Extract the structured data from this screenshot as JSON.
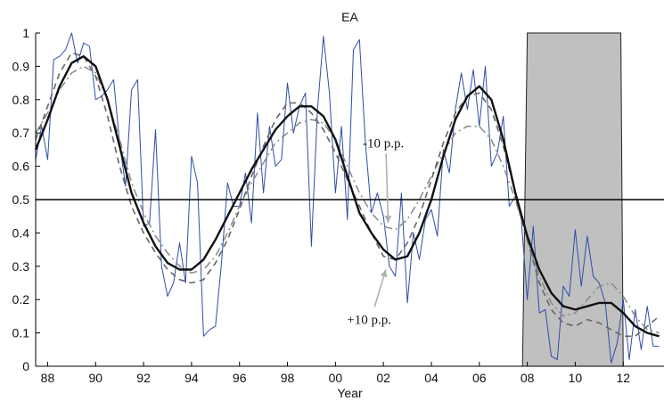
{
  "chart_data": {
    "type": "line",
    "title": "EA",
    "xlabel": "Year",
    "ylabel": "",
    "xlim": [
      1987.5,
      2013.7
    ],
    "ylim": [
      0,
      1
    ],
    "x_ticks": [
      1988,
      1990,
      1992,
      1994,
      1996,
      1998,
      2000,
      2002,
      2004,
      2006,
      2008,
      2010,
      2012
    ],
    "x_tick_labels": [
      "88",
      "90",
      "92",
      "94",
      "96",
      "98",
      "00",
      "02",
      "04",
      "06",
      "08",
      "10",
      "12"
    ],
    "y_ticks": [
      0,
      0.1,
      0.2,
      0.3,
      0.4,
      0.5,
      0.6,
      0.7,
      0.8,
      0.9,
      1
    ],
    "y_tick_labels": [
      "0",
      "0.1",
      "0.2",
      "0.3",
      "0.4",
      "0.5",
      "0.6",
      "0.7",
      "0.8",
      "0.9",
      "1"
    ],
    "grid": false,
    "threshold": 0.5,
    "shaded_region": {
      "x_start": 2007.8,
      "x_end": 2012.0,
      "top_x_start": 2008.0,
      "top_x_end": 2011.9,
      "color": "#c0c0c0"
    },
    "annotations": [
      {
        "text": "-10 p.p.",
        "x": 2002.0,
        "y": 0.67
      },
      {
        "text": "+10 p.p.",
        "x": 2002.0,
        "y": 0.14
      }
    ],
    "colors": {
      "noisy": "#2f4ea8",
      "smooth": "#111111",
      "dashed": "#666666",
      "dashdot": "#888888"
    },
    "series": [
      {
        "style": "noisy",
        "x": [
          1987.5,
          1987.75,
          1988,
          1988.25,
          1988.5,
          1988.75,
          1989,
          1989.25,
          1989.5,
          1989.75,
          1990,
          1990.25,
          1990.5,
          1990.75,
          1991,
          1991.25,
          1991.5,
          1991.75,
          1992,
          1992.25,
          1992.5,
          1992.75,
          1993,
          1993.25,
          1993.5,
          1993.75,
          1994,
          1994.25,
          1994.5,
          1994.75,
          1995,
          1995.25,
          1995.5,
          1995.75,
          1996,
          1996.25,
          1996.5,
          1996.75,
          1997,
          1997.25,
          1997.5,
          1997.75,
          1998,
          1998.25,
          1998.5,
          1998.75,
          1999,
          1999.25,
          1999.5,
          1999.75,
          2000,
          2000.25,
          2000.5,
          2000.75,
          2001,
          2001.25,
          2001.5,
          2001.75,
          2002,
          2002.25,
          2002.5,
          2002.75,
          2003,
          2003.25,
          2003.5,
          2003.75,
          2004,
          2004.25,
          2004.5,
          2004.75,
          2005,
          2005.25,
          2005.5,
          2005.75,
          2006,
          2006.25,
          2006.5,
          2006.75,
          2007,
          2007.25,
          2007.5,
          2007.75,
          2008,
          2008.25,
          2008.5,
          2008.75,
          2009,
          2009.25,
          2009.5,
          2009.75,
          2010,
          2010.25,
          2010.5,
          2010.75,
          2011,
          2011.25,
          2011.5,
          2011.75,
          2012,
          2012.25,
          2012.5,
          2012.75,
          2013,
          2013.25,
          2013.5
        ],
        "y": [
          0.62,
          0.72,
          0.62,
          0.92,
          0.93,
          0.95,
          1.0,
          0.91,
          0.97,
          0.96,
          0.8,
          0.81,
          0.83,
          0.86,
          0.67,
          0.54,
          0.83,
          0.86,
          0.42,
          0.43,
          0.71,
          0.3,
          0.21,
          0.25,
          0.37,
          0.25,
          0.63,
          0.55,
          0.09,
          0.11,
          0.12,
          0.31,
          0.55,
          0.48,
          0.48,
          0.58,
          0.43,
          0.76,
          0.52,
          0.72,
          0.6,
          0.62,
          0.85,
          0.7,
          0.78,
          0.82,
          0.36,
          0.77,
          0.99,
          0.82,
          0.52,
          0.72,
          0.44,
          0.95,
          0.98,
          0.67,
          0.46,
          0.52,
          0.45,
          0.3,
          0.27,
          0.52,
          0.19,
          0.4,
          0.32,
          0.44,
          0.47,
          0.39,
          0.65,
          0.58,
          0.77,
          0.88,
          0.77,
          0.89,
          0.72,
          0.9,
          0.6,
          0.64,
          0.75,
          0.48,
          0.51,
          0.44,
          0.2,
          0.42,
          0.16,
          0.17,
          0.03,
          0.02,
          0.24,
          0.21,
          0.41,
          0.24,
          0.39,
          0.27,
          0.25,
          0.19,
          0.01,
          0.07,
          0.2,
          0.02,
          0.17,
          0.05,
          0.18,
          0.06,
          0.06
        ]
      },
      {
        "style": "smooth",
        "x": [
          1987.5,
          1988,
          1988.5,
          1989,
          1989.5,
          1990,
          1990.5,
          1991,
          1991.5,
          1992,
          1992.5,
          1993,
          1993.5,
          1994,
          1994.5,
          1995,
          1995.5,
          1996,
          1996.5,
          1997,
          1997.5,
          1998,
          1998.5,
          1999,
          1999.5,
          2000,
          2000.5,
          2001,
          2001.5,
          2002,
          2002.5,
          2003,
          2003.5,
          2004,
          2004.5,
          2005,
          2005.5,
          2006,
          2006.5,
          2007,
          2007.5,
          2008,
          2008.5,
          2009,
          2009.5,
          2010,
          2010.5,
          2011,
          2011.5,
          2012,
          2012.5,
          2013,
          2013.5
        ],
        "y": [
          0.65,
          0.74,
          0.84,
          0.91,
          0.93,
          0.9,
          0.8,
          0.66,
          0.52,
          0.43,
          0.36,
          0.31,
          0.29,
          0.29,
          0.32,
          0.38,
          0.45,
          0.52,
          0.59,
          0.65,
          0.71,
          0.75,
          0.78,
          0.78,
          0.75,
          0.68,
          0.57,
          0.46,
          0.4,
          0.35,
          0.32,
          0.33,
          0.4,
          0.5,
          0.63,
          0.74,
          0.81,
          0.84,
          0.8,
          0.68,
          0.52,
          0.39,
          0.29,
          0.22,
          0.18,
          0.17,
          0.18,
          0.19,
          0.19,
          0.16,
          0.12,
          0.1,
          0.09
        ]
      },
      {
        "style": "dashed",
        "x": [
          1987.5,
          1988,
          1988.5,
          1989,
          1989.5,
          1990,
          1990.5,
          1991,
          1991.5,
          1992,
          1992.5,
          1993,
          1993.5,
          1994,
          1994.5,
          1995,
          1995.5,
          1996,
          1996.5,
          1997,
          1997.5,
          1998,
          1998.5,
          1999,
          1999.5,
          2000,
          2000.5,
          2001,
          2001.5,
          2002,
          2002.5,
          2003,
          2003.5,
          2004,
          2004.5,
          2005,
          2005.5,
          2006,
          2006.5,
          2007,
          2007.5,
          2008,
          2008.5,
          2009,
          2009.5,
          2010,
          2010.5,
          2011,
          2011.5,
          2012,
          2012.5,
          2013,
          2013.5
        ],
        "y": [
          0.68,
          0.78,
          0.88,
          0.94,
          0.93,
          0.87,
          0.75,
          0.6,
          0.48,
          0.4,
          0.34,
          0.29,
          0.26,
          0.25,
          0.26,
          0.31,
          0.38,
          0.47,
          0.57,
          0.66,
          0.74,
          0.79,
          0.79,
          0.76,
          0.71,
          0.64,
          0.56,
          0.48,
          0.4,
          0.33,
          0.32,
          0.37,
          0.45,
          0.56,
          0.67,
          0.76,
          0.81,
          0.82,
          0.77,
          0.66,
          0.52,
          0.38,
          0.25,
          0.17,
          0.13,
          0.12,
          0.14,
          0.13,
          0.11,
          0.09,
          0.09,
          0.12,
          0.15
        ]
      },
      {
        "style": "dashdot",
        "x": [
          1987.5,
          1988,
          1988.5,
          1989,
          1989.5,
          1990,
          1990.5,
          1991,
          1991.5,
          1992,
          1992.5,
          1993,
          1993.5,
          1994,
          1994.5,
          1995,
          1995.5,
          1996,
          1996.5,
          1997,
          1997.5,
          1998,
          1998.5,
          1999,
          1999.5,
          2000,
          2000.5,
          2001,
          2001.5,
          2002,
          2002.5,
          2003,
          2003.5,
          2004,
          2004.5,
          2005,
          2005.5,
          2006,
          2006.5,
          2007,
          2007.5,
          2008,
          2008.5,
          2009,
          2009.5,
          2010,
          2010.5,
          2011,
          2011.5,
          2012,
          2012.5,
          2013,
          2013.5
        ],
        "y": [
          0.7,
          0.76,
          0.83,
          0.88,
          0.9,
          0.88,
          0.8,
          0.68,
          0.55,
          0.46,
          0.39,
          0.34,
          0.3,
          0.28,
          0.29,
          0.33,
          0.4,
          0.48,
          0.55,
          0.61,
          0.67,
          0.7,
          0.73,
          0.74,
          0.73,
          0.68,
          0.6,
          0.52,
          0.46,
          0.42,
          0.41,
          0.44,
          0.5,
          0.57,
          0.64,
          0.7,
          0.72,
          0.72,
          0.68,
          0.6,
          0.5,
          0.38,
          0.27,
          0.19,
          0.15,
          0.16,
          0.2,
          0.24,
          0.25,
          0.21,
          0.15,
          0.11,
          0.1
        ]
      }
    ]
  }
}
